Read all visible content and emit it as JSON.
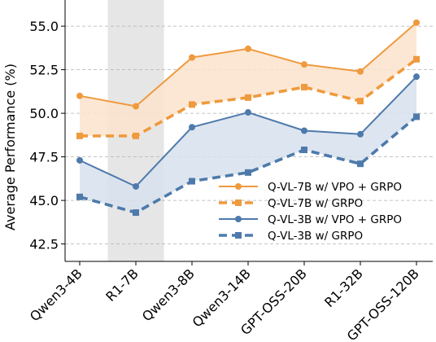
{
  "chart_data": {
    "type": "line",
    "title": "",
    "xlabel": "",
    "ylabel": "Average Performance (%)",
    "categories": [
      "Qwen3-4B",
      "R1-7B",
      "Qwen3-8B",
      "Qwen3-14B",
      "GPT-OSS-20B",
      "R1-32B",
      "GPT-OSS-120B"
    ],
    "ylim": [
      41.5,
      56.5
    ],
    "yticks": [
      42.5,
      45.0,
      47.5,
      50.0,
      52.5,
      55.0
    ],
    "ytick_labels": [
      "42.5",
      "45.0",
      "47.5",
      "50.0",
      "52.5",
      "55.0"
    ],
    "highlight_category": "R1-7B",
    "grid": "horizontal dashed",
    "legend_position": "lower-right",
    "series": [
      {
        "name": "Q-VL-7B w/ VPO + GRPO",
        "values": [
          51.0,
          50.4,
          53.2,
          53.7,
          52.8,
          52.4,
          55.2
        ],
        "color": "#ef9a3d",
        "style": "solid",
        "marker": "circle"
      },
      {
        "name": "Q-VL-7B w/ GRPO",
        "values": [
          48.7,
          48.7,
          50.5,
          50.9,
          51.5,
          50.7,
          53.1
        ],
        "color": "#ef9a3d",
        "style": "dashed",
        "marker": "square"
      },
      {
        "name": "Q-VL-3B w/ VPO + GRPO",
        "values": [
          47.3,
          45.8,
          49.2,
          50.05,
          49.0,
          48.8,
          52.1
        ],
        "color": "#4d7aab",
        "style": "solid",
        "marker": "circle"
      },
      {
        "name": "Q-VL-3B w/ GRPO",
        "values": [
          45.2,
          44.3,
          46.1,
          46.6,
          47.9,
          47.1,
          49.8
        ],
        "color": "#4d7aab",
        "style": "dashed",
        "marker": "square"
      }
    ],
    "bands": [
      {
        "upper": "Q-VL-7B w/ VPO + GRPO",
        "lower": "Q-VL-7B w/ GRPO",
        "color": "#fbe3cc"
      },
      {
        "upper": "Q-VL-3B w/ VPO + GRPO",
        "lower": "Q-VL-3B w/ GRPO",
        "color": "#d7e1ed"
      }
    ]
  }
}
